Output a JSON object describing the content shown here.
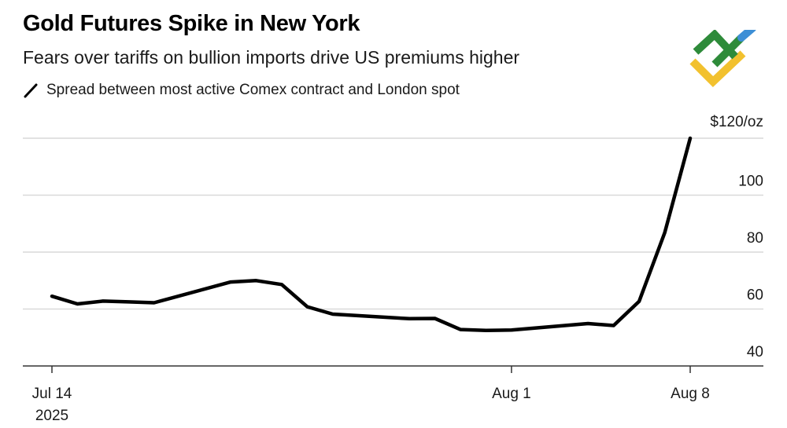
{
  "header": {
    "title": "Gold Futures Spike in New York",
    "subtitle": "Fears over tariffs on bullion imports drive US premiums higher"
  },
  "legend": {
    "label": "Spread between most active Comex contract and London spot"
  },
  "logo": {
    "colors": [
      "#2e8b3a",
      "#f2c12e",
      "#3d8fd6"
    ]
  },
  "colors": {
    "line": "#000000",
    "grid": "#d9d9d9",
    "axis": "#333333"
  },
  "chart_data": {
    "type": "line",
    "title": "Gold Futures Spike in New York",
    "subtitle": "Fears over tariffs on bullion imports drive US premiums higher",
    "ylabel": "",
    "y_unit_label": "$120/oz",
    "ylim": [
      40,
      120
    ],
    "yticks": [
      40,
      60,
      80,
      100,
      120
    ],
    "ytick_labels": [
      "40",
      "60",
      "80",
      "100",
      "$120/oz"
    ],
    "xlim": [
      "2025-07-14",
      "2025-08-08"
    ],
    "xticks": [
      {
        "date": "2025-07-14",
        "label": "Jul 14",
        "sublabel": "2025"
      },
      {
        "date": "2025-08-01",
        "label": "Aug 1",
        "sublabel": ""
      },
      {
        "date": "2025-08-08",
        "label": "Aug 8",
        "sublabel": ""
      }
    ],
    "grid": true,
    "legend_position": "top-left",
    "series": [
      {
        "name": "Spread between most active Comex contract and London spot",
        "points": [
          {
            "x": "2025-07-14",
            "y": 64.5
          },
          {
            "x": "2025-07-15",
            "y": 61.8
          },
          {
            "x": "2025-07-16",
            "y": 62.8
          },
          {
            "x": "2025-07-17",
            "y": 62.5
          },
          {
            "x": "2025-07-18",
            "y": 62.2
          },
          {
            "x": "2025-07-21",
            "y": 69.5
          },
          {
            "x": "2025-07-22",
            "y": 70.0
          },
          {
            "x": "2025-07-23",
            "y": 68.6
          },
          {
            "x": "2025-07-24",
            "y": 60.8
          },
          {
            "x": "2025-07-25",
            "y": 58.2
          },
          {
            "x": "2025-07-28",
            "y": 56.6
          },
          {
            "x": "2025-07-29",
            "y": 56.7
          },
          {
            "x": "2025-07-30",
            "y": 52.8
          },
          {
            "x": "2025-07-31",
            "y": 52.5
          },
          {
            "x": "2025-08-01",
            "y": 52.6
          },
          {
            "x": "2025-08-04",
            "y": 54.9
          },
          {
            "x": "2025-08-05",
            "y": 54.2
          },
          {
            "x": "2025-08-06",
            "y": 62.7
          },
          {
            "x": "2025-08-07",
            "y": 86.8
          },
          {
            "x": "2025-08-08",
            "y": 120.0
          }
        ]
      }
    ]
  }
}
